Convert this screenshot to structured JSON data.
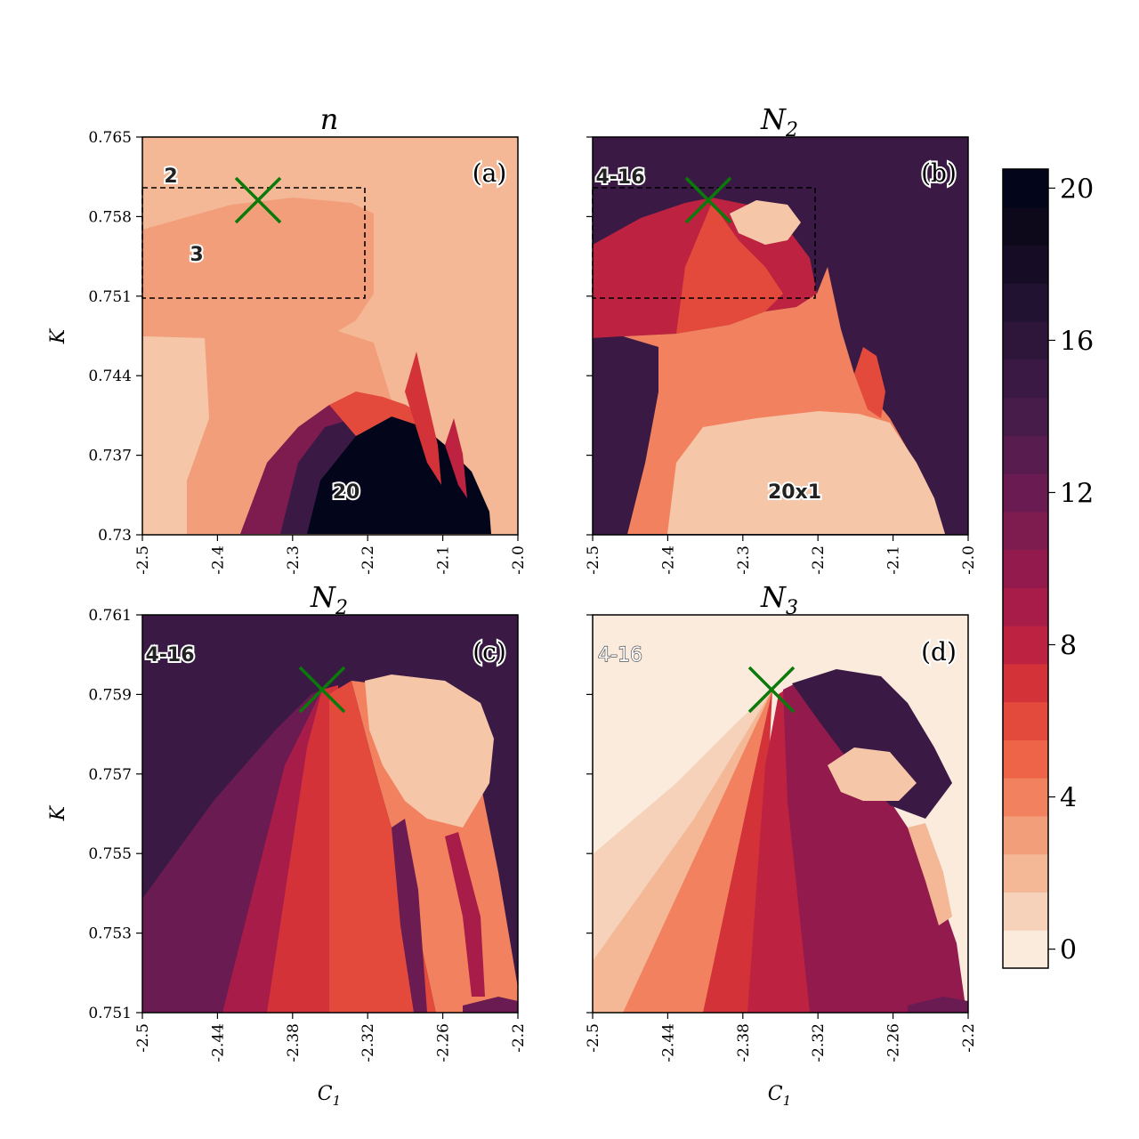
{
  "chart_data": [
    {
      "type": "heatmap",
      "panel": "a",
      "title": "n",
      "panel_label": "(a)",
      "xlabel": "",
      "ylabel": "K",
      "xlim": [
        -2.5,
        -2.0
      ],
      "ylim": [
        0.73,
        0.765
      ],
      "x_ticks": [
        "-2.5",
        "-2.4",
        "-2.3",
        "-2.2",
        "-2.1",
        "-2.0"
      ],
      "y_ticks": [
        "0.765",
        "0.758",
        "0.751",
        "0.744",
        "0.737",
        "0.73"
      ],
      "annotations": [
        {
          "text": "2",
          "x": -2.465,
          "y": 0.7612
        },
        {
          "text": "3",
          "x": -2.428,
          "y": 0.7555
        },
        {
          "text": "20",
          "x": -2.235,
          "y": 0.7343
        }
      ],
      "marker": {
        "symbol": "x",
        "x": -2.35,
        "y": 0.7593,
        "color": "#0a7a0a"
      },
      "zoom_box": {
        "x": [
          -2.5,
          -2.2
        ],
        "y": [
          0.751,
          0.7608
        ]
      },
      "regions": [
        {
          "value": 2,
          "desc": "background"
        },
        {
          "value": 3,
          "desc": "upper-left band"
        },
        {
          "value": 20,
          "desc": "lower wedge"
        }
      ]
    },
    {
      "type": "heatmap",
      "panel": "b",
      "title": "N_2",
      "panel_label": "(b)",
      "xlabel": "",
      "ylabel": "",
      "xlim": [
        -2.5,
        -2.0
      ],
      "ylim": [
        0.73,
        0.765
      ],
      "x_ticks": [
        "-2.5",
        "-2.4",
        "-2.3",
        "-2.2",
        "-2.1",
        "-2.0"
      ],
      "annotations": [
        {
          "text": "4-16",
          "x": -2.468,
          "y": 0.7611
        },
        {
          "text": "20x1",
          "x": -2.264,
          "y": 0.7343
        }
      ],
      "marker": {
        "symbol": "x",
        "x": -2.35,
        "y": 0.7593,
        "color": "#0a7a0a"
      },
      "zoom_box": {
        "x": [
          -2.5,
          -2.2
        ],
        "y": [
          0.751,
          0.7608
        ]
      },
      "regions": [
        {
          "value": 16,
          "desc": "background"
        },
        {
          "value": 1,
          "desc": "lower wedge (20x1)"
        },
        {
          "value": 4,
          "desc": "middle band"
        }
      ]
    },
    {
      "type": "heatmap",
      "panel": "c",
      "title": "N_2",
      "panel_label": "(c)",
      "xlabel": "C_1",
      "ylabel": "K",
      "xlim": [
        -2.5,
        -2.2
      ],
      "ylim": [
        0.751,
        0.761
      ],
      "x_ticks": [
        "-2.5",
        "-2.44",
        "-2.38",
        "-2.32",
        "-2.26",
        "-2.2"
      ],
      "y_ticks": [
        "0.761",
        "0.759",
        "0.757",
        "0.755",
        "0.753",
        "0.751"
      ],
      "annotations": [
        {
          "text": "4-16",
          "x": -2.48,
          "y": 0.7601
        }
      ],
      "marker": {
        "symbol": "x",
        "x": -2.353,
        "y": 0.7592,
        "color": "#0a7a0a"
      },
      "regions": [
        {
          "value": 16,
          "desc": "background"
        },
        {
          "value": 1,
          "desc": "upper-right lobe"
        },
        {
          "value": 6,
          "desc": "fan center"
        }
      ]
    },
    {
      "type": "heatmap",
      "panel": "d",
      "title": "N_3",
      "panel_label": "(d)",
      "xlabel": "C_1",
      "ylabel": "",
      "xlim": [
        -2.5,
        -2.2
      ],
      "ylim": [
        0.751,
        0.761
      ],
      "x_ticks": [
        "-2.5",
        "-2.44",
        "-2.38",
        "-2.32",
        "-2.26",
        "-2.2"
      ],
      "annotations": [
        {
          "text": "4-16",
          "x": -2.48,
          "y": 0.7601
        }
      ],
      "marker": {
        "symbol": "x",
        "x": -2.353,
        "y": 0.7592,
        "color": "#0a7a0a"
      },
      "regions": [
        {
          "value": 0,
          "desc": "background"
        },
        {
          "value": 13,
          "desc": "fan interior"
        },
        {
          "value": 16,
          "desc": "upper arm"
        }
      ]
    }
  ],
  "colorbar": {
    "range": [
      -0.5,
      20.5
    ],
    "ticks": [
      "20",
      "16",
      "12",
      "8",
      "4",
      "0"
    ],
    "colors": [
      "#faebdd",
      "#f6d2ba",
      "#f4b897",
      "#f39e7a",
      "#f2825f",
      "#ee6448",
      "#e34a3c",
      "#d33239",
      "#bd2341",
      "#a71c48",
      "#921a4c",
      "#7e1b4f",
      "#6a1b51",
      "#581c4f",
      "#471b4a",
      "#3a1a44",
      "#2e163b",
      "#221231",
      "#170c25",
      "#0e081b",
      "#03051a"
    ]
  }
}
